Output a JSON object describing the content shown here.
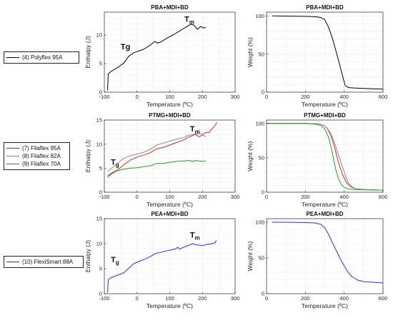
{
  "chart_data": [
    {
      "type": "line",
      "title": "PBA+MDI+BD",
      "xlabel": "Temperature (ºC)",
      "ylabel": "Enthalpy (J)",
      "xlim": [
        -100,
        300
      ],
      "ylim": [
        0,
        14
      ],
      "xticks": [
        -100,
        0,
        100,
        200,
        300
      ],
      "yticks": [
        0,
        5,
        10
      ],
      "annotations": [
        {
          "text": "Tg",
          "x": -50,
          "y": 7.5
        },
        {
          "text": "Tm",
          "x": 145,
          "y": 12.3,
          "sub": "m",
          "main": "T"
        }
      ],
      "series": [
        {
          "name": "(4) Polyflex 95A",
          "color": "#000000",
          "x": [
            -90,
            -88,
            -80,
            -60,
            -40,
            -25,
            -10,
            0,
            20,
            40,
            55,
            60,
            70,
            90,
            110,
            130,
            150,
            165,
            175,
            185,
            195,
            205,
            210
          ],
          "y": [
            0.3,
            3.2,
            3.6,
            4.3,
            5.1,
            6.3,
            6.9,
            7.1,
            7.5,
            8.2,
            8.9,
            8.6,
            8.7,
            9.4,
            10.0,
            10.7,
            11.4,
            11.9,
            11.7,
            11.0,
            11.5,
            11.2,
            11.4
          ]
        }
      ]
    },
    {
      "type": "line",
      "title": "PBA+MDI+BD",
      "xlabel": "Temperature (ºC)",
      "ylabel": "Weight (%)",
      "xlim": [
        0,
        600
      ],
      "ylim": [
        0,
        105
      ],
      "xticks": [
        0,
        200,
        400,
        600
      ],
      "yticks": [
        0,
        50,
        100
      ],
      "series": [
        {
          "name": "(4) Polyflex 95A",
          "color": "#000000",
          "x": [
            30,
            100,
            200,
            250,
            280,
            300,
            320,
            340,
            360,
            380,
            395,
            405,
            415,
            425,
            450,
            500,
            550,
            600
          ],
          "y": [
            100,
            99.8,
            99.5,
            99,
            98,
            95,
            85,
            70,
            52,
            33,
            18,
            9,
            7,
            6,
            5.5,
            5,
            4.5,
            4
          ]
        }
      ]
    },
    {
      "type": "line",
      "title": "PTMG+MDI+BD",
      "xlabel": "Temperature (ºC)",
      "ylabel": "Enthalpy (J)",
      "xlim": [
        -100,
        300
      ],
      "ylim": [
        0,
        15
      ],
      "xticks": [
        -100,
        0,
        100,
        200,
        300
      ],
      "yticks": [
        0,
        5,
        10,
        15
      ],
      "annotations": [
        {
          "text": "Tg",
          "x": -80,
          "y": 5.7,
          "sub": "g",
          "main": "T"
        },
        {
          "text": "Tm",
          "x": 162,
          "y": 12.6,
          "sub": "m",
          "main": "T"
        }
      ],
      "series": [
        {
          "name": "(7) Filaflex 95A",
          "color": "#e8231f",
          "x": [
            -90,
            -80,
            -60,
            -40,
            -20,
            0,
            20,
            40,
            50,
            60,
            80,
            100,
            120,
            140,
            160,
            170,
            180,
            190,
            200,
            210,
            220,
            230,
            240,
            245
          ],
          "y": [
            3.4,
            3.9,
            4.6,
            5.7,
            6.7,
            7.3,
            7.7,
            8.2,
            8.6,
            9.0,
            9.3,
            9.8,
            10.3,
            10.8,
            11.5,
            11.8,
            12.0,
            11.5,
            11.9,
            12.4,
            12.4,
            13.2,
            14.0,
            14.5
          ]
        },
        {
          "name": "(8) Filaflex 82A",
          "color": "#888888",
          "x": [
            -90,
            -80,
            -60,
            -40,
            -20,
            0,
            20,
            40,
            50,
            60,
            80,
            100,
            120,
            140,
            160,
            170,
            180,
            190,
            200,
            210
          ],
          "y": [
            4.3,
            4.9,
            6.0,
            7.1,
            7.6,
            7.9,
            8.3,
            8.9,
            9.3,
            9.8,
            10.2,
            10.6,
            11.0,
            11.3,
            11.9,
            12.0,
            12.1,
            12.2,
            12.0,
            11.5
          ]
        },
        {
          "name": "(9) Filaflex 70A",
          "color": "#1e9d2a",
          "x": [
            -90,
            -80,
            -60,
            -40,
            -20,
            0,
            20,
            40,
            50,
            60,
            80,
            100,
            120,
            140,
            160,
            170,
            180,
            200,
            210
          ],
          "y": [
            3.1,
            3.7,
            4.5,
            4.8,
            5.0,
            5.1,
            5.3,
            5.5,
            5.7,
            6.0,
            6.0,
            6.2,
            6.4,
            6.5,
            6.6,
            6.4,
            6.6,
            6.4,
            6.5
          ]
        }
      ]
    },
    {
      "type": "line",
      "title": "PTMG+MDI+BD",
      "xlabel": "Temperature (ºC)",
      "ylabel": "Weight (%)",
      "xlim": [
        0,
        600
      ],
      "ylim": [
        0,
        105
      ],
      "xticks": [
        0,
        200,
        400,
        600
      ],
      "yticks": [
        0,
        50,
        100
      ],
      "series": [
        {
          "name": "(7) Filaflex 95A",
          "color": "#e8231f",
          "x": [
            0,
            100,
            200,
            260,
            290,
            310,
            330,
            350,
            370,
            390,
            410,
            420,
            440,
            460,
            500,
            600
          ],
          "y": [
            100,
            100,
            100,
            99.5,
            98,
            94,
            84,
            66,
            44,
            27,
            15,
            11,
            7,
            5,
            4,
            3
          ]
        },
        {
          "name": "(8) Filaflex 82A",
          "color": "#888888",
          "x": [
            0,
            100,
            200,
            260,
            290,
            310,
            330,
            350,
            370,
            390,
            410,
            420,
            440,
            460,
            500,
            600
          ],
          "y": [
            100,
            100,
            100,
            99.5,
            98,
            94,
            86,
            72,
            55,
            38,
            22,
            14,
            8,
            5,
            4,
            3
          ]
        },
        {
          "name": "(9) Filaflex 70A",
          "color": "#1e9d2a",
          "x": [
            0,
            100,
            200,
            250,
            280,
            300,
            320,
            340,
            355,
            370,
            385,
            400,
            420,
            450,
            500,
            600
          ],
          "y": [
            100,
            100,
            100,
            99,
            97,
            92,
            80,
            56,
            35,
            20,
            11,
            7,
            5,
            4,
            3.5,
            3
          ]
        }
      ]
    },
    {
      "type": "line",
      "title": "PEA+MDI+BD",
      "xlabel": "Temperature (ºC)",
      "ylabel": "Enthalpy (J)",
      "xlim": [
        -100,
        300
      ],
      "ylim": [
        0,
        15
      ],
      "xticks": [
        -100,
        0,
        100,
        200,
        300
      ],
      "yticks": [
        0,
        5,
        10,
        15
      ],
      "annotations": [
        {
          "text": "Tg",
          "x": -80,
          "y": 6.3,
          "sub": "g",
          "main": "T"
        },
        {
          "text": "Tm",
          "x": 162,
          "y": 11.2,
          "sub": "m",
          "main": "T"
        }
      ],
      "series": [
        {
          "name": "(10) FlexiSmart 88A",
          "color": "#2b2bff",
          "x": [
            -90,
            -88,
            -80,
            -60,
            -40,
            -30,
            -20,
            -10,
            0,
            20,
            40,
            50,
            60,
            80,
            100,
            120,
            125,
            130,
            140,
            150,
            160,
            170,
            180,
            190,
            200,
            210,
            220,
            230,
            240,
            242
          ],
          "y": [
            0.2,
            2.8,
            3.2,
            3.7,
            4.2,
            4.8,
            5.4,
            6.0,
            6.3,
            6.8,
            7.4,
            7.8,
            8.1,
            8.4,
            8.7,
            9.0,
            9.3,
            8.9,
            9.2,
            9.5,
            9.7,
            10.0,
            9.8,
            9.7,
            9.6,
            9.8,
            9.9,
            10.0,
            10.2,
            10.7
          ]
        }
      ]
    },
    {
      "type": "line",
      "title": "PEA+MDI+BD",
      "xlabel": "Temperature (ºC)",
      "ylabel": "Weight (%)",
      "xlim": [
        0,
        600
      ],
      "ylim": [
        0,
        105
      ],
      "xticks": [
        0,
        200,
        400,
        600
      ],
      "yticks": [
        0,
        50,
        100
      ],
      "series": [
        {
          "name": "(10) FlexiSmart 88A",
          "color": "#2b2bff",
          "x": [
            30,
            100,
            200,
            250,
            280,
            300,
            320,
            340,
            360,
            380,
            400,
            420,
            440,
            470,
            500,
            550,
            600
          ],
          "y": [
            100,
            100,
            99.5,
            99,
            97,
            92,
            83,
            71,
            60,
            49,
            39,
            30,
            24,
            19,
            17,
            16,
            15
          ]
        }
      ]
    }
  ],
  "legends": [
    {
      "items": [
        {
          "label": "(4) Polyflex 95A",
          "color": "#000000"
        }
      ]
    },
    {
      "items": [
        {
          "label": "(7) Filaflex 95A",
          "color": "#e8231f"
        },
        {
          "label": "(8) Filaflex 82A",
          "color": "#888888"
        },
        {
          "label": "(9) Filaflex 70A",
          "color": "#1e9d2a"
        }
      ]
    },
    {
      "items": [
        {
          "label": "(10) FlexiSmart 88A",
          "color": "#2b2bff"
        }
      ]
    }
  ]
}
